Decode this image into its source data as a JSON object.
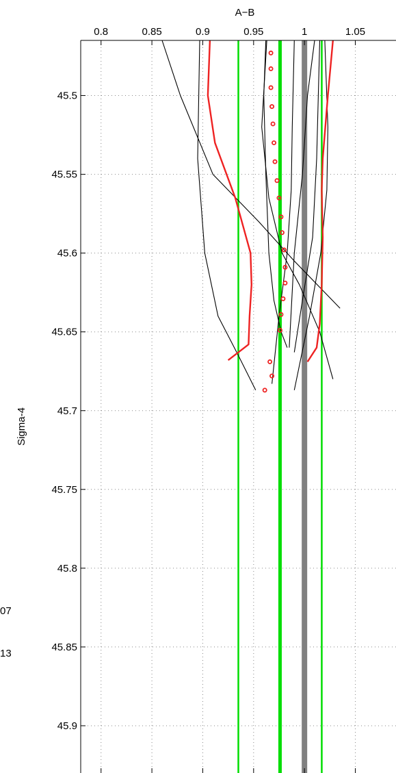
{
  "chart_data": {
    "type": "line",
    "xlabel": "A−B",
    "ylabel": "Sigma-4",
    "xlim": [
      0.78,
      1.09
    ],
    "ylim": [
      45.465,
      45.93
    ],
    "y_reversed": true,
    "x_axis_position": "top",
    "grid": true,
    "x_ticks": [
      0.8,
      0.85,
      0.9,
      0.95,
      1,
      1.05
    ],
    "x_tick_labels": [
      "0.8",
      "0.85",
      "0.9",
      "0.95",
      "1",
      "1.05"
    ],
    "y_ticks": [
      45.5,
      45.55,
      45.6,
      45.65,
      45.7,
      45.75,
      45.8,
      45.85,
      45.9
    ],
    "y_tick_labels": [
      "45.5",
      "45.55",
      "45.6",
      "45.65",
      "45.7",
      "45.75",
      "45.8",
      "45.85",
      "45.9"
    ],
    "margin_text": [
      "07",
      "13"
    ],
    "vertical_lines": [
      {
        "x": 1.0,
        "color": "#808080",
        "style": "thick"
      },
      {
        "x": 0.976,
        "color": "#00dd00",
        "style": "thick"
      },
      {
        "x": 0.935,
        "color": "#00dd00",
        "style": "thin"
      },
      {
        "x": 1.017,
        "color": "#00dd00",
        "style": "thin"
      }
    ],
    "series": [
      {
        "color": "#000000",
        "style": "line",
        "x": [
          0.86,
          0.878,
          0.91,
          0.955,
          0.99,
          1.035
        ],
        "y": [
          45.465,
          45.5,
          45.55,
          45.58,
          45.605,
          45.635
        ]
      },
      {
        "color": "#000000",
        "style": "line",
        "x": [
          0.897,
          0.895,
          0.902,
          0.915,
          0.935,
          0.952
        ],
        "y": [
          45.465,
          45.54,
          45.6,
          45.64,
          45.665,
          45.687
        ]
      },
      {
        "color": "#000000",
        "style": "line",
        "x": [
          0.962,
          0.96,
          0.962,
          0.965,
          0.97,
          0.977,
          0.983
        ],
        "y": [
          45.465,
          45.5,
          45.55,
          45.6,
          45.63,
          45.65,
          45.66
        ]
      },
      {
        "color": "#000000",
        "style": "line",
        "x": [
          0.963,
          0.958,
          0.965,
          0.978,
          0.995,
          1.015,
          1.028
        ],
        "y": [
          45.465,
          45.52,
          45.565,
          45.6,
          45.62,
          45.65,
          45.68
        ]
      },
      {
        "color": "#000000",
        "style": "line",
        "x": [
          0.99,
          0.988,
          0.987,
          0.983,
          0.975,
          0.968
        ],
        "y": [
          45.465,
          45.52,
          45.56,
          45.6,
          45.64,
          45.683
        ]
      },
      {
        "color": "#000000",
        "style": "line",
        "x": [
          1.015,
          1.012,
          1.008,
          0.998,
          0.99
        ],
        "y": [
          45.465,
          45.54,
          45.59,
          45.63,
          45.663
        ]
      },
      {
        "color": "#000000",
        "style": "line",
        "x": [
          1.01,
          1.003,
          0.998,
          0.99,
          0.985
        ],
        "y": [
          45.465,
          45.5,
          45.55,
          45.6,
          45.66
        ]
      },
      {
        "color": "#000000",
        "style": "line",
        "x": [
          1.02,
          1.023,
          1.022,
          1.016,
          1.005,
          0.99
        ],
        "y": [
          45.465,
          45.52,
          45.56,
          45.6,
          45.64,
          45.687
        ]
      },
      {
        "color": "#ee2222",
        "style": "line",
        "x": [
          0.907,
          0.905,
          0.912,
          0.932,
          0.947,
          0.948,
          0.946,
          0.945,
          0.925
        ],
        "y": [
          45.465,
          45.5,
          45.53,
          45.565,
          45.6,
          45.62,
          45.64,
          45.658,
          45.668
        ]
      },
      {
        "color": "#ee2222",
        "style": "line",
        "x": [
          1.028,
          1.023,
          1.018,
          1.017,
          1.018,
          1.017,
          1.015,
          1.012,
          1.003
        ],
        "y": [
          45.465,
          45.5,
          45.54,
          45.56,
          45.59,
          45.62,
          45.645,
          45.66,
          45.669
        ]
      },
      {
        "color": "#ee2222",
        "style": "circles",
        "x": [
          0.967,
          0.967,
          0.967,
          0.968,
          0.969,
          0.97,
          0.971,
          0.973,
          0.975,
          0.977,
          0.978,
          0.98,
          0.981,
          0.981,
          0.979,
          0.977,
          0.976,
          0.966,
          0.968,
          0.961
        ],
        "y": [
          45.473,
          45.483,
          45.495,
          45.507,
          45.518,
          45.53,
          45.542,
          45.554,
          45.565,
          45.577,
          45.587,
          45.598,
          45.609,
          45.619,
          45.629,
          45.639,
          45.649,
          45.669,
          45.678,
          45.687
        ]
      }
    ]
  }
}
